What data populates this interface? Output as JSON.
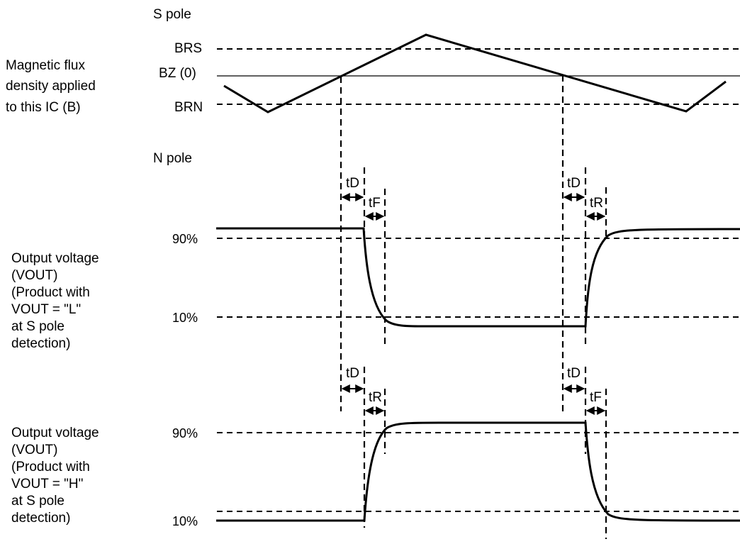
{
  "colors": {
    "stroke": "#000000",
    "background": "#ffffff"
  },
  "labels": {
    "s_pole": "S pole",
    "n_pole": "N pole",
    "brs": {
      "main": "B",
      "sub": "RS"
    },
    "bz": {
      "main": "B",
      "sub": "Z",
      "suffix": " (0)"
    },
    "brn": {
      "main": "B",
      "sub": "RN"
    },
    "pct90": "90%",
    "pct10": "10%",
    "td": {
      "main": "t",
      "sub": "D"
    },
    "tf": {
      "main": "t",
      "sub": "F"
    },
    "tr": {
      "main": "t",
      "sub": "R"
    }
  },
  "section_flux": [
    "Magnetic flux",
    "density applied",
    "to this IC (B)"
  ],
  "section_out_l": {
    "line1": "Output voltage",
    "vout_line": {
      "pre": "(V",
      "sub": "OUT",
      "post": ")"
    },
    "line3": "(Product with",
    "vout_eq": {
      "pre": "V",
      "sub": "OUT",
      "post": " = \"L\""
    },
    "line5": "at S pole",
    "line6": "detection)"
  },
  "section_out_h": {
    "line1": "Output voltage",
    "vout_line": {
      "pre": "(V",
      "sub": "OUT",
      "post": ")"
    },
    "line3": "(Product with",
    "vout_eq": {
      "pre": "V",
      "sub": "OUT",
      "post": " = \"H\""
    },
    "line5": "at S pole",
    "line6": "detection)"
  }
}
